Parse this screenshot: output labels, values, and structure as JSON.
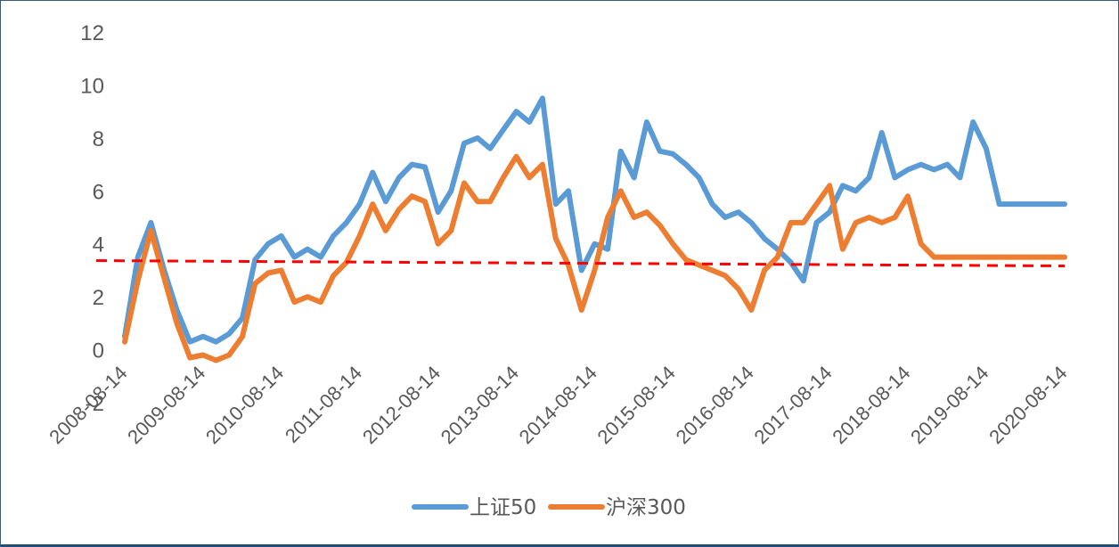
{
  "chart_data": {
    "type": "line",
    "title": "",
    "xlabel": "",
    "ylabel": "",
    "ylim": [
      -2,
      12
    ],
    "y_ticks": [
      "12",
      "10",
      "8",
      "6",
      "4",
      "2",
      "0",
      "-2"
    ],
    "x_ticks": [
      "2008-08-14",
      "2009-08-14",
      "2010-08-14",
      "2011-08-14",
      "2012-08-14",
      "2013-08-14",
      "2014-08-14",
      "2015-08-14",
      "2016-08-14",
      "2017-08-14",
      "2018-08-14",
      "2019-08-14",
      "2020-08-14"
    ],
    "grid": false,
    "legend_position": "bottom",
    "reference_line": {
      "value": 3.3,
      "color": "#ff0000",
      "style": "dashed"
    },
    "x": [
      "2008-08-14",
      "2008-10-14",
      "2008-12-14",
      "2009-02-14",
      "2009-04-14",
      "2009-06-14",
      "2009-08-14",
      "2009-10-14",
      "2009-12-14",
      "2010-02-14",
      "2010-04-14",
      "2010-06-14",
      "2010-08-14",
      "2010-10-14",
      "2010-12-14",
      "2011-02-14",
      "2011-04-14",
      "2011-06-14",
      "2011-08-14",
      "2011-10-14",
      "2011-12-14",
      "2012-02-14",
      "2012-04-14",
      "2012-06-14",
      "2012-08-14",
      "2012-10-14",
      "2012-12-14",
      "2013-02-14",
      "2013-04-14",
      "2013-06-14",
      "2013-08-14",
      "2013-10-14",
      "2013-12-14",
      "2014-02-14",
      "2014-04-14",
      "2014-06-14",
      "2014-08-14",
      "2014-10-14",
      "2014-12-14",
      "2015-02-14",
      "2015-04-14",
      "2015-06-14",
      "2015-08-14",
      "2015-10-14",
      "2015-12-14",
      "2016-02-14",
      "2016-04-14",
      "2016-06-14",
      "2016-08-14",
      "2016-10-14",
      "2016-12-14",
      "2017-02-14",
      "2017-04-14",
      "2017-06-14",
      "2017-08-14",
      "2017-10-14",
      "2017-12-14",
      "2018-02-14",
      "2018-04-14",
      "2018-06-14",
      "2018-08-14",
      "2018-10-14",
      "2018-12-14",
      "2019-02-14",
      "2019-04-14",
      "2019-06-14",
      "2019-08-14",
      "2019-10-14",
      "2019-12-14",
      "2020-02-14",
      "2020-04-14",
      "2020-06-14",
      "2020-08-14"
    ],
    "series": [
      {
        "name": "上证50",
        "color": "#5b9bd5",
        "values": [
          0.5,
          3.5,
          4.8,
          3.0,
          1.5,
          0.3,
          0.5,
          0.3,
          0.6,
          1.2,
          3.4,
          4.0,
          4.3,
          3.5,
          3.8,
          3.5,
          4.3,
          4.8,
          5.5,
          6.7,
          5.6,
          6.5,
          7.0,
          6.9,
          5.2,
          6.0,
          7.8,
          8.0,
          7.6,
          8.3,
          9.0,
          8.6,
          9.5,
          5.5,
          6.0,
          3.0,
          4.0,
          3.8,
          7.5,
          6.5,
          8.6,
          7.5,
          7.4,
          7.0,
          6.5,
          5.5,
          5.0,
          5.2,
          4.8,
          4.2,
          3.8,
          3.3,
          2.6,
          4.8,
          5.2,
          6.2,
          6.0,
          6.5,
          8.2,
          6.5,
          6.8,
          7.0,
          6.8,
          7.0,
          6.5,
          8.6,
          7.6,
          5.5,
          5.5,
          5.5,
          5.5,
          5.5,
          5.5
        ]
      },
      {
        "name": "沪深300",
        "color": "#ed7d31",
        "values": [
          0.3,
          2.6,
          4.5,
          2.7,
          1.0,
          -0.3,
          -0.2,
          -0.4,
          -0.2,
          0.5,
          2.5,
          2.9,
          3.0,
          1.8,
          2.0,
          1.8,
          2.8,
          3.3,
          4.3,
          5.5,
          4.5,
          5.3,
          5.8,
          5.6,
          4.0,
          4.5,
          6.3,
          5.6,
          5.6,
          6.5,
          7.3,
          6.5,
          7.0,
          4.2,
          3.2,
          1.5,
          3.0,
          5.0,
          6.0,
          5.0,
          5.2,
          4.7,
          4.0,
          3.4,
          3.2,
          3.0,
          2.8,
          2.3,
          1.5,
          3.0,
          3.5,
          4.8,
          4.8,
          5.5,
          6.2,
          3.8,
          4.8,
          5.0,
          4.8,
          5.0,
          5.8,
          4.0,
          3.5,
          3.5,
          3.5,
          3.5,
          3.5,
          3.5,
          3.5,
          3.5,
          3.5,
          3.5,
          3.5
        ]
      }
    ]
  }
}
